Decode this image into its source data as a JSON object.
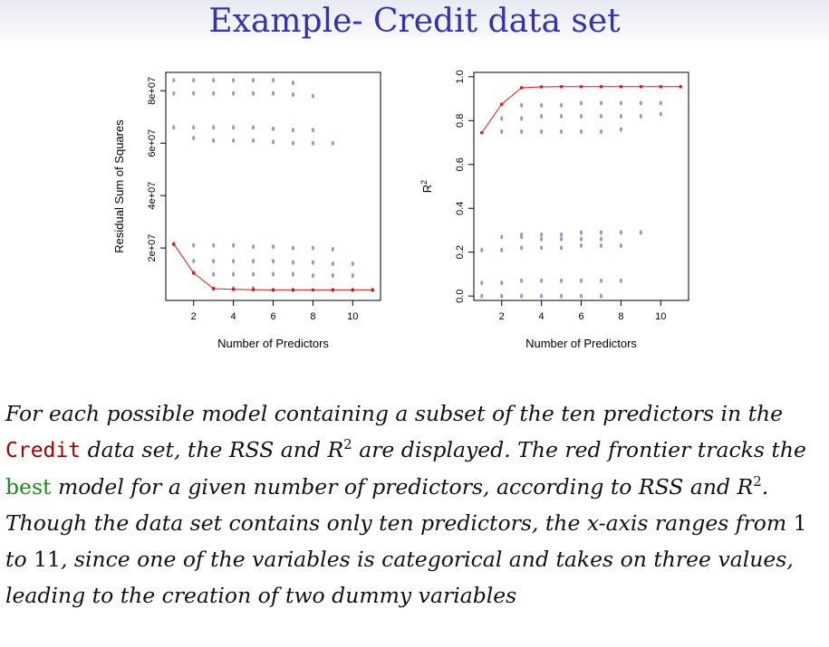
{
  "title": "Example- Credit data set",
  "chart_data": [
    {
      "type": "scatter",
      "xlabel": "Number of Predictors",
      "ylabel": "Residual Sum of Squares",
      "xlim": [
        0.6,
        11.4
      ],
      "ylim": [
        0,
        87000000
      ],
      "xticks": [
        2,
        4,
        6,
        8,
        10
      ],
      "yticks": [
        20000000,
        40000000,
        60000000,
        80000000
      ],
      "yticklabels": [
        "2e+07",
        "4e+07",
        "6e+07",
        "8e+07"
      ],
      "grid": false,
      "points_color": "#8fa0c4",
      "frontier_color": "#e0151b",
      "series": [
        {
          "name": "",
          "x": [
            1,
            1,
            1,
            1,
            2,
            2,
            2,
            2,
            2,
            2,
            2,
            3,
            3,
            3,
            3,
            3,
            3,
            3,
            3,
            4,
            4,
            4,
            4,
            4,
            4,
            4,
            4,
            5,
            5,
            5,
            5,
            5,
            5,
            5,
            5,
            6,
            6,
            6,
            6,
            6,
            6,
            6,
            6,
            7,
            7,
            7,
            7,
            7,
            7,
            7,
            7,
            8,
            8,
            8,
            8,
            8,
            8,
            9,
            9,
            9,
            9,
            9,
            10,
            10,
            10,
            11
          ],
          "y": [
            84000000,
            79000000,
            66000000,
            21500000,
            84000000,
            79000000,
            66000000,
            62000000,
            21000000,
            15000000,
            10500000,
            84000000,
            79000000,
            66000000,
            61000000,
            21000000,
            15000000,
            10000000,
            4500000,
            84000000,
            79000000,
            66000000,
            61000000,
            21000000,
            15000000,
            10000000,
            4500000,
            84000000,
            79000000,
            66000000,
            61000000,
            20500000,
            15000000,
            10000000,
            4500000,
            84000000,
            79000000,
            65500000,
            60500000,
            20500000,
            15000000,
            10000000,
            4000000,
            83000000,
            78500000,
            65000000,
            60000000,
            20000000,
            14500000,
            10000000,
            4000000,
            78000000,
            65000000,
            60000000,
            20000000,
            14500000,
            9500000,
            60000000,
            19500000,
            14000000,
            9500000,
            4000000,
            14000000,
            9500000,
            4000000,
            4000000
          ]
        },
        {
          "name": "",
          "x": [
            1,
            2,
            3,
            4,
            5,
            6,
            7,
            8,
            9,
            10,
            11
          ],
          "y": [
            21500000,
            10500000,
            4500000,
            4200000,
            4100000,
            4000000,
            4000000,
            4000000,
            4000000,
            4000000,
            4000000
          ]
        }
      ]
    },
    {
      "type": "scatter",
      "xlabel": "Number of Predictors",
      "ylabel": "R2",
      "xlim": [
        0.6,
        11.4
      ],
      "ylim": [
        -0.02,
        1.02
      ],
      "xticks": [
        2,
        4,
        6,
        8,
        10
      ],
      "yticks": [
        0.0,
        0.2,
        0.4,
        0.6,
        0.8,
        1.0
      ],
      "yticklabels": [
        "0.0",
        "0.2",
        "0.4",
        "0.6",
        "0.8",
        "1.0"
      ],
      "grid": false,
      "points_color": "#8fa0c4",
      "frontier_color": "#e0151b",
      "series": [
        {
          "name": "",
          "x": [
            1,
            1,
            1,
            2,
            2,
            2,
            2,
            2,
            2,
            3,
            3,
            3,
            3,
            3,
            3,
            3,
            3,
            4,
            4,
            4,
            4,
            4,
            4,
            4,
            4,
            5,
            5,
            5,
            5,
            5,
            5,
            5,
            5,
            6,
            6,
            6,
            6,
            6,
            6,
            6,
            6,
            7,
            7,
            7,
            7,
            7,
            7,
            7,
            7,
            8,
            8,
            8,
            8,
            8,
            8,
            9,
            9,
            9,
            10,
            10
          ],
          "y": [
            0.21,
            0.06,
            0.0,
            0.81,
            0.75,
            0.27,
            0.21,
            0.06,
            0.0,
            0.87,
            0.81,
            0.75,
            0.28,
            0.22,
            0.07,
            0.0,
            0.27,
            0.87,
            0.82,
            0.75,
            0.28,
            0.22,
            0.07,
            0.0,
            0.26,
            0.87,
            0.82,
            0.75,
            0.28,
            0.22,
            0.07,
            0.0,
            0.26,
            0.88,
            0.82,
            0.75,
            0.29,
            0.23,
            0.07,
            0.0,
            0.26,
            0.88,
            0.82,
            0.75,
            0.29,
            0.23,
            0.07,
            0.0,
            0.26,
            0.88,
            0.82,
            0.76,
            0.29,
            0.23,
            0.07,
            0.88,
            0.82,
            0.29,
            0.88,
            0.83
          ]
        },
        {
          "name": "",
          "x": [
            1,
            2,
            3,
            4,
            5,
            6,
            7,
            8,
            9,
            10,
            11
          ],
          "y": [
            0.745,
            0.875,
            0.95,
            0.954,
            0.955,
            0.955,
            0.955,
            0.955,
            0.955,
            0.955,
            0.955
          ]
        }
      ]
    }
  ],
  "caption": {
    "p1": "For each possible model containing a subset of the ten predictors in the ",
    "credit": "Credit",
    "p2": " data set, the RSS and ",
    "r": "R",
    "sup1": "2",
    "p3": " are displayed. The red frontier tracks the ",
    "best": "best",
    "p4": " model for a given number of predictors, according to RSS and ",
    "r2": "R",
    "sup2": "2",
    "p5": ". Though the data set contains only ten predictors, the ",
    "xaxis": "x",
    "p6": "-axis ranges from ",
    "n1": "1",
    "p7": " to ",
    "n2": "11",
    "p8": ", since one of the variables is categorical and takes on three values, leading to the creation of two dummy variables"
  }
}
